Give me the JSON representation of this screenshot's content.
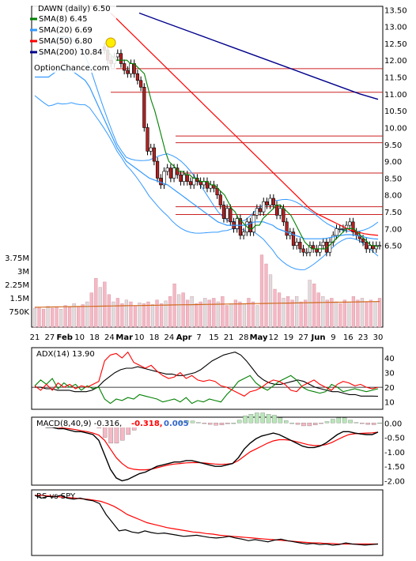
{
  "chart_data": [
    {
      "type": "candlestick",
      "panel": "price",
      "title": "DAWN (daily) 6.50",
      "watermark": "OptionChance.com",
      "legend": [
        {
          "label": "SMA(8) 6.45",
          "color": "#008000"
        },
        {
          "label": "SMA(20) 6.69",
          "color": "#3399ff"
        },
        {
          "label": "SMA(50) 6.80",
          "color": "#ff0000"
        },
        {
          "label": "SMA(200) 10.84",
          "color": "#00008b"
        }
      ],
      "legend_placement": "top-left",
      "yaxis_position": "right",
      "yticks": [
        "13.50",
        "13.00",
        "12.50",
        "12.00",
        "11.50",
        "11.00",
        "10.50",
        "10.00",
        "9.50",
        "9.00",
        "8.50",
        "8.00",
        "7.50",
        "7.00",
        "6.50"
      ],
      "ylim": [
        6.0,
        13.6
      ],
      "resistance_lines": [
        11.75,
        11.05,
        9.75,
        9.55,
        8.65,
        7.65,
        7.42
      ],
      "date_labels": [
        "21",
        "27",
        "Feb",
        "10",
        "18",
        "24",
        "Mar",
        "10",
        "18",
        "24",
        "Apr",
        "7",
        "15",
        "21",
        "28",
        "May",
        "12",
        "19",
        "27",
        "Jun",
        "9",
        "16",
        "23",
        "30"
      ],
      "prices": {
        "close": [
          12.3,
          12.0,
          11.9,
          12.1,
          12.2,
          11.9,
          11.7,
          11.6,
          11.9,
          11.6,
          11.4,
          11.2,
          10.0,
          9.3,
          9.4,
          9.0,
          8.5,
          8.3,
          8.7,
          8.8,
          8.5,
          8.8,
          8.6,
          8.4,
          8.6,
          8.4,
          8.3,
          8.5,
          8.4,
          8.3,
          8.4,
          8.2,
          8.3,
          8.2,
          8.0,
          7.7,
          7.3,
          7.6,
          7.2,
          7.0,
          7.3,
          6.8,
          6.9,
          7.2,
          6.9,
          7.4,
          7.6,
          7.5,
          7.8,
          7.7,
          7.9,
          7.7,
          7.4,
          7.6,
          7.2,
          6.8,
          6.9,
          6.5,
          6.6,
          6.4,
          6.3,
          6.3,
          6.5,
          6.4,
          6.3,
          6.5,
          6.6,
          6.3,
          6.6,
          6.8,
          7.0,
          7.0,
          7.0,
          7.1,
          7.2,
          6.9,
          6.8,
          6.7,
          6.6,
          6.4,
          6.5,
          6.4,
          6.5,
          6.5
        ]
      },
      "series": [
        {
          "name": "SMA(8)",
          "color": "#008000",
          "values": [
            12.3,
            12.2,
            12.1,
            12.0,
            12.0,
            12.0,
            12.0,
            11.9,
            11.9,
            11.8,
            11.7,
            11.6,
            11.2,
            10.8,
            10.5,
            10.1,
            9.7,
            9.3,
            9.0,
            8.9,
            8.8,
            8.7,
            8.7,
            8.6,
            8.6,
            8.5,
            8.5,
            8.4,
            8.4,
            8.4,
            8.3,
            8.3,
            8.2,
            8.1,
            8.0,
            7.8,
            7.6,
            7.5,
            7.3,
            7.2,
            7.1,
            7.0,
            7.0,
            7.1,
            7.1,
            7.3,
            7.4,
            7.5,
            7.6,
            7.7,
            7.7,
            7.6,
            7.5,
            7.4,
            7.2,
            7.0,
            6.8,
            6.6,
            6.5,
            6.4,
            6.4,
            6.4,
            6.4,
            6.4,
            6.5,
            6.6,
            6.7,
            6.8,
            6.9,
            7.0,
            7.0,
            7.0,
            6.9,
            6.8,
            6.7,
            6.6,
            6.5,
            6.5,
            6.45
          ]
        },
        {
          "name": "SMA(20)",
          "color": "#3399ff",
          "values": [
            11.5,
            11.5,
            11.5,
            11.5,
            11.6,
            11.7,
            11.7,
            11.7,
            11.7,
            11.6,
            11.5,
            11.4,
            11.2,
            10.9,
            10.6,
            10.3,
            10.0,
            9.7,
            9.4,
            9.2,
            9.0,
            8.9,
            8.8,
            8.7,
            8.6,
            8.5,
            8.45,
            8.4,
            8.35,
            8.3,
            8.2,
            8.1,
            8.0,
            7.9,
            7.8,
            7.7,
            7.6,
            7.5,
            7.4,
            7.3,
            7.2,
            7.15,
            7.1,
            7.1,
            7.1,
            7.1,
            7.1,
            7.15,
            7.2,
            7.2,
            7.2,
            7.15,
            7.1,
            7.0,
            6.95,
            6.9,
            6.85,
            6.8,
            6.75,
            6.7,
            6.7,
            6.7,
            6.7,
            6.7,
            6.72,
            6.75,
            6.78,
            6.8,
            6.82,
            6.82,
            6.8,
            6.78,
            6.75,
            6.72,
            6.7,
            6.69
          ]
        },
        {
          "name": "SMA(50)",
          "color": "#ff0000",
          "values": [
            13.4,
            13.2,
            13.0,
            12.8,
            12.6,
            12.4,
            12.2,
            12.0,
            11.8,
            11.6,
            11.4,
            11.2,
            11.0,
            10.8,
            10.6,
            10.4,
            10.2,
            10.0,
            9.8,
            9.6,
            9.4,
            9.2,
            9.0,
            8.8,
            8.6,
            8.4,
            8.2,
            8.0,
            7.8,
            7.6,
            7.45,
            7.35,
            7.25,
            7.15,
            7.05,
            6.95,
            6.9,
            6.85,
            6.82,
            6.8
          ]
        },
        {
          "name": "SMA(200)",
          "color": "#00008b",
          "values": [
            13.4,
            13.2,
            13.0,
            12.8,
            12.6,
            12.4,
            12.2,
            12.0,
            11.8,
            11.6,
            11.4,
            11.2,
            11.0,
            10.84
          ]
        }
      ]
    },
    {
      "type": "bar",
      "panel": "volume",
      "yticks": [
        "3.75M",
        "3M",
        "2.25M",
        "1.5M",
        "750K"
      ],
      "ylim": [
        0,
        4200000
      ],
      "values": [
        1050000,
        1100000,
        1000000,
        1150000,
        1050000,
        1100000,
        1000000,
        1200000,
        1100000,
        1300000,
        1150000,
        1250000,
        1400000,
        1900000,
        2700000,
        2200000,
        2500000,
        1800000,
        1400000,
        1600000,
        1300000,
        1500000,
        1400000,
        1200000,
        1350000,
        1300000,
        1400000,
        1250000,
        1500000,
        1300000,
        1450000,
        1700000,
        2400000,
        1800000,
        1900000,
        1500000,
        1700000,
        1300000,
        1400000,
        1600000,
        1500000,
        1600000,
        1400000,
        1700000,
        1200000,
        1300000,
        1500000,
        1400000,
        1300000,
        1600000,
        1400000,
        1200000,
        4000000,
        3500000,
        2900000,
        2100000,
        1900000,
        1600000,
        1700000,
        1500000,
        1700000,
        1400000,
        1500000,
        2600000,
        2400000,
        1900000,
        1700000,
        1500000,
        1600000,
        1400000,
        1300000,
        1500000,
        1400000,
        1700000,
        1500000,
        1600000,
        1400000,
        1500000,
        1400000,
        1600000
      ]
    },
    {
      "type": "line",
      "panel": "adx",
      "label": "ADX(14) 13.90",
      "yticks": [
        "40",
        "30",
        "20",
        "10"
      ],
      "ylim": [
        5,
        47
      ],
      "series": [
        {
          "name": "ADX",
          "color": "#000000",
          "values": [
            20,
            20,
            19,
            19,
            18,
            18,
            18,
            17,
            17,
            17,
            18,
            20,
            24,
            27,
            30,
            32,
            33,
            33,
            34,
            33,
            32,
            31,
            30,
            29,
            29,
            28,
            28,
            29,
            30,
            32,
            35,
            38,
            40,
            42,
            43,
            44,
            42,
            38,
            33,
            28,
            25,
            23,
            22,
            22,
            23,
            24,
            25,
            24,
            22,
            20,
            19,
            18,
            17,
            17,
            16,
            15,
            15,
            14,
            14,
            14,
            13.9
          ]
        },
        {
          "name": "+DI",
          "color": "#008000",
          "values": [
            21,
            25,
            22,
            26,
            19,
            23,
            20,
            22,
            18,
            21,
            19,
            20,
            12,
            9,
            12,
            11,
            13,
            12,
            15,
            14,
            13,
            12,
            10,
            11,
            12,
            10,
            13,
            9,
            11,
            10,
            12,
            11,
            10,
            15,
            19,
            24,
            26,
            28,
            23,
            20,
            18,
            21,
            24,
            26,
            28,
            25,
            20,
            18,
            17,
            16,
            17,
            22,
            20,
            17,
            18,
            19,
            18,
            17,
            18,
            19
          ]
        },
        {
          "name": "-DI",
          "color": "#ff0000",
          "values": [
            21,
            18,
            22,
            18,
            23,
            20,
            22,
            19,
            21,
            20,
            22,
            24,
            38,
            42,
            43,
            40,
            44,
            37,
            35,
            33,
            35,
            31,
            28,
            26,
            27,
            30,
            26,
            28,
            25,
            24,
            25,
            24,
            21,
            20,
            18,
            16,
            14,
            17,
            18,
            20,
            23,
            25,
            24,
            22,
            18,
            17,
            21,
            23,
            25,
            22,
            20,
            18,
            22,
            24,
            23,
            21,
            22,
            20,
            19,
            20
          ]
        }
      ]
    },
    {
      "type": "line",
      "panel": "macd",
      "label": "MACD(8,40,9) -0.316,",
      "label_values": [
        {
          "text": "-0.318,",
          "color": "#ff0000"
        },
        {
          "text": "0.005",
          "color": "#3366cc"
        }
      ],
      "yticks": [
        "0.00",
        "-0.50",
        "-1.00",
        "-1.50",
        "-2.00"
      ],
      "ylim": [
        -2.15,
        0.2
      ],
      "series": [
        {
          "name": "MACD",
          "color": "#000000",
          "values": [
            -0.1,
            -0.1,
            -0.15,
            -0.15,
            -0.2,
            -0.2,
            -0.25,
            -0.3,
            -0.3,
            -0.35,
            -0.4,
            -0.6,
            -1.1,
            -1.6,
            -1.9,
            -2.0,
            -1.95,
            -1.85,
            -1.75,
            -1.7,
            -1.6,
            -1.5,
            -1.45,
            -1.4,
            -1.35,
            -1.35,
            -1.3,
            -1.3,
            -1.35,
            -1.4,
            -1.45,
            -1.5,
            -1.5,
            -1.45,
            -1.4,
            -1.2,
            -0.9,
            -0.7,
            -0.55,
            -0.45,
            -0.4,
            -0.35,
            -0.4,
            -0.5,
            -0.6,
            -0.7,
            -0.8,
            -0.85,
            -0.85,
            -0.8,
            -0.7,
            -0.55,
            -0.4,
            -0.3,
            -0.3,
            -0.35,
            -0.38,
            -0.4,
            -0.4,
            -0.316
          ]
        },
        {
          "name": "Signal",
          "color": "#ff0000",
          "values": [
            -0.1,
            -0.1,
            -0.1,
            -0.12,
            -0.15,
            -0.18,
            -0.2,
            -0.23,
            -0.27,
            -0.3,
            -0.35,
            -0.42,
            -0.6,
            -0.9,
            -1.2,
            -1.4,
            -1.55,
            -1.6,
            -1.62,
            -1.62,
            -1.6,
            -1.55,
            -1.5,
            -1.45,
            -1.42,
            -1.4,
            -1.38,
            -1.37,
            -1.37,
            -1.38,
            -1.4,
            -1.42,
            -1.43,
            -1.42,
            -1.4,
            -1.3,
            -1.15,
            -1.0,
            -0.9,
            -0.8,
            -0.7,
            -0.62,
            -0.58,
            -0.58,
            -0.6,
            -0.65,
            -0.7,
            -0.75,
            -0.78,
            -0.78,
            -0.75,
            -0.68,
            -0.58,
            -0.48,
            -0.4,
            -0.37,
            -0.36,
            -0.35,
            -0.34,
            -0.318
          ]
        },
        {
          "name": "Histogram",
          "color": "#aaaaaa",
          "values": [
            0,
            0,
            -0.05,
            -0.03,
            -0.05,
            -0.02,
            -0.05,
            -0.07,
            -0.03,
            -0.05,
            -0.05,
            -0.18,
            -0.5,
            -0.7,
            -0.7,
            -0.6,
            -0.4,
            -0.25,
            -0.13,
            -0.08,
            0,
            0.05,
            0.05,
            0.05,
            0.07,
            0.05,
            0.08,
            0.07,
            0.02,
            -0.02,
            -0.05,
            -0.08,
            -0.07,
            -0.03,
            0,
            0.1,
            0.25,
            0.3,
            0.35,
            0.35,
            0.3,
            0.27,
            0.18,
            0.08,
            0,
            -0.05,
            -0.1,
            -0.1,
            -0.07,
            -0.02,
            0.05,
            0.13,
            0.18,
            0.18,
            0.1,
            0.02,
            -0.02,
            -0.05,
            -0.06,
            0.005
          ]
        }
      ]
    },
    {
      "type": "line",
      "panel": "relative-strength",
      "label": "RS vs SPY",
      "series": [
        {
          "name": "RS",
          "color": "#000000",
          "values": [
            0.95,
            0.9,
            0.93,
            0.92,
            0.95,
            0.9,
            0.88,
            0.9,
            0.87,
            0.85,
            0.8,
            0.6,
            0.45,
            0.3,
            0.32,
            0.28,
            0.26,
            0.3,
            0.27,
            0.25,
            0.26,
            0.24,
            0.22,
            0.2,
            0.21,
            0.22,
            0.2,
            0.18,
            0.17,
            0.18,
            0.2,
            0.17,
            0.15,
            0.12,
            0.14,
            0.12,
            0.1,
            0.13,
            0.15,
            0.12,
            0.1,
            0.08,
            0.06,
            0.07,
            0.05,
            0.06,
            0.04,
            0.05,
            0.08,
            0.06,
            0.05,
            0.04,
            0.05,
            0.06
          ]
        },
        {
          "name": "RS avg",
          "color": "#ff0000",
          "values": [
            0.95,
            0.95,
            0.94,
            0.93,
            0.92,
            0.91,
            0.9,
            0.89,
            0.88,
            0.86,
            0.84,
            0.8,
            0.75,
            0.68,
            0.6,
            0.55,
            0.5,
            0.45,
            0.42,
            0.39,
            0.36,
            0.34,
            0.32,
            0.3,
            0.28,
            0.27,
            0.25,
            0.24,
            0.22,
            0.21,
            0.2,
            0.19,
            0.18,
            0.17,
            0.16,
            0.15,
            0.14,
            0.13,
            0.12,
            0.11,
            0.1,
            0.09,
            0.08,
            0.08,
            0.07,
            0.07,
            0.06,
            0.06,
            0.06,
            0.06,
            0.06,
            0.06,
            0.06
          ]
        }
      ]
    }
  ]
}
